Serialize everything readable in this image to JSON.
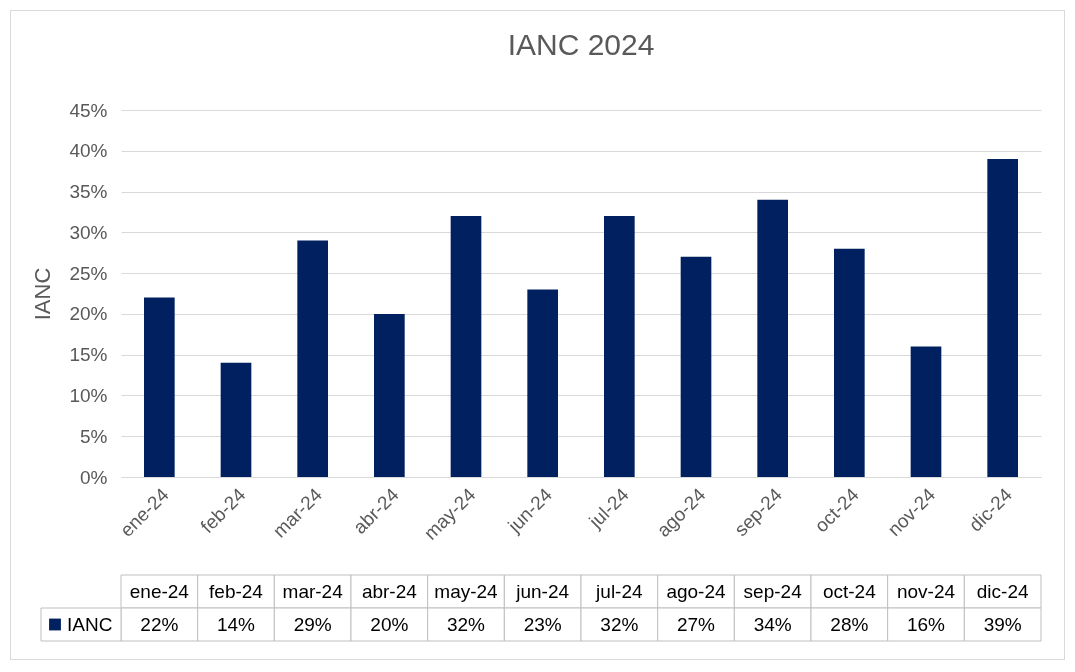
{
  "chart_data": {
    "type": "bar",
    "title": "IANC 2024",
    "ylabel": "IANC",
    "categories": [
      "ene-24",
      "feb-24",
      "mar-24",
      "abr-24",
      "may-24",
      "jun-24",
      "jul-24",
      "ago-24",
      "sep-24",
      "oct-24",
      "nov-24",
      "dic-24"
    ],
    "series": [
      {
        "name": "IANC",
        "color": "#002060",
        "values": [
          22,
          14,
          29,
          20,
          32,
          23,
          32,
          27,
          34,
          28,
          16,
          39
        ],
        "value_labels": [
          "22%",
          "14%",
          "29%",
          "20%",
          "32%",
          "23%",
          "32%",
          "27%",
          "34%",
          "28%",
          "16%",
          "39%"
        ]
      }
    ],
    "ylim": [
      0,
      45
    ],
    "yticks": [
      {
        "value": 0,
        "label": "0%"
      },
      {
        "value": 5,
        "label": "5%"
      },
      {
        "value": 10,
        "label": "10%"
      },
      {
        "value": 15,
        "label": "15%"
      },
      {
        "value": 20,
        "label": "20%"
      },
      {
        "value": 25,
        "label": "25%"
      },
      {
        "value": 30,
        "label": "30%"
      },
      {
        "value": 35,
        "label": "35%"
      },
      {
        "value": 40,
        "label": "40%"
      },
      {
        "value": 45,
        "label": "45%"
      }
    ],
    "grid": "y",
    "legend": "bottom"
  }
}
